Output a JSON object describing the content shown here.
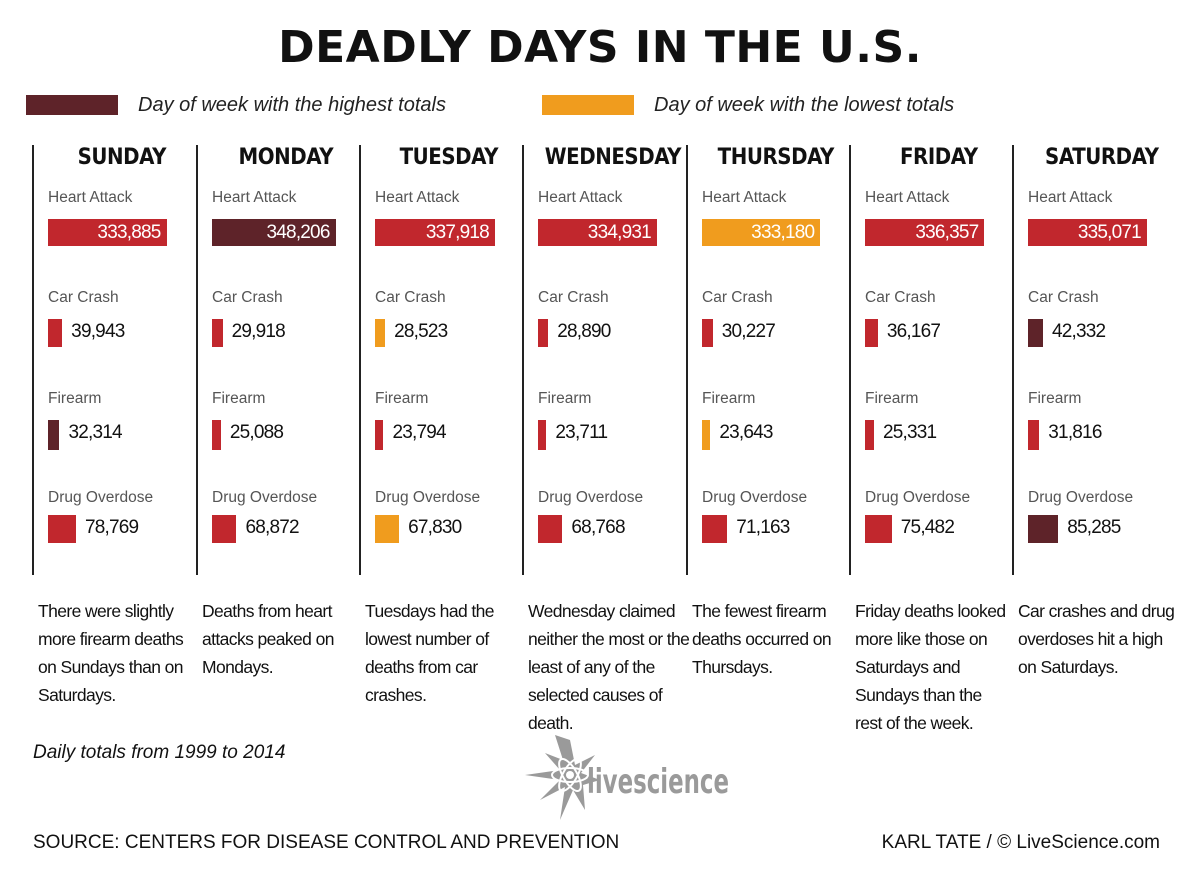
{
  "title": "DEADLY DAYS IN THE U.S.",
  "legend": {
    "highest": {
      "label": "Day of week with the highest totals",
      "color": "#5e2329"
    },
    "lowest": {
      "label": "Day of week with the lowest totals",
      "color": "#f09c1e"
    },
    "default_color": "#c1272d"
  },
  "chart_data": {
    "type": "bar",
    "orientation": "horizontal",
    "categories": [
      "Heart Attack",
      "Car Crash",
      "Firearm",
      "Drug Overdose"
    ],
    "series": [
      {
        "name": "SUNDAY",
        "values": [
          333885,
          39943,
          32314,
          78769
        ],
        "labels": [
          "333,885",
          "39,943",
          "32,314",
          "78,769"
        ],
        "highlight": [
          "",
          "",
          "highest",
          ""
        ]
      },
      {
        "name": "MONDAY",
        "values": [
          348206,
          29918,
          25088,
          68872
        ],
        "labels": [
          "348,206",
          "29,918",
          "25,088",
          "68,872"
        ],
        "highlight": [
          "highest",
          "",
          "",
          ""
        ]
      },
      {
        "name": "TUESDAY",
        "values": [
          337918,
          28523,
          23794,
          67830
        ],
        "labels": [
          "337,918",
          "28,523",
          "23,794",
          "67,830"
        ],
        "highlight": [
          "",
          "lowest",
          "",
          "lowest"
        ]
      },
      {
        "name": "WEDNESDAY",
        "values": [
          334931,
          28890,
          23711,
          68768
        ],
        "labels": [
          "334,931",
          "28,890",
          "23,711",
          "68,768"
        ],
        "highlight": [
          "",
          "",
          "",
          ""
        ]
      },
      {
        "name": "THURSDAY",
        "values": [
          333180,
          30227,
          23643,
          71163
        ],
        "labels": [
          "333,180",
          "30,227",
          "23,643",
          "71,163"
        ],
        "highlight": [
          "lowest",
          "",
          "lowest",
          ""
        ]
      },
      {
        "name": "FRIDAY",
        "values": [
          336357,
          36167,
          25331,
          75482
        ],
        "labels": [
          "336,357",
          "36,167",
          "25,331",
          "75,482"
        ],
        "highlight": [
          "",
          "",
          "",
          ""
        ]
      },
      {
        "name": "SATURDAY",
        "values": [
          335071,
          42332,
          31816,
          85285
        ],
        "labels": [
          "335,071",
          "42,332",
          "31,816",
          "85,285"
        ],
        "highlight": [
          "",
          "highest",
          "",
          "highest"
        ]
      }
    ],
    "notes": [
      "There were slightly\nmore firearm deaths\non Sundays than on\nSaturdays.",
      "Deaths from heart\nattacks peaked on\nMondays.",
      "Tuesdays had the\nlowest number of\ndeaths from car\ncrashes.",
      "Wednesday claimed\nneither the most or the\nleast of any of the\nselected causes of death.",
      "The fewest firearm\ndeaths occurred on\nThursdays.",
      "Friday deaths looked\nmore like those on\nSaturdays and\nSundays than the\nrest of the week.",
      "Car crashes and drug\noverdoses hit a high\non Saturdays."
    ]
  },
  "footnote": "Daily totals from 1999 to 2014",
  "source": "SOURCE: CENTERS FOR DISEASE CONTROL AND PREVENTION",
  "credit": "KARL TATE / © LiveScience.com",
  "logo_text": "livescience"
}
